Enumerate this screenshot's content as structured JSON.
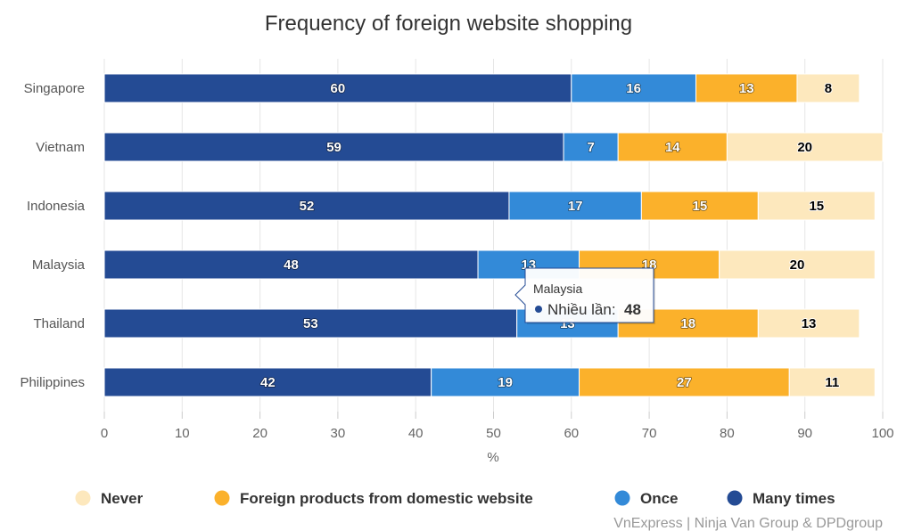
{
  "chart_data": {
    "type": "bar",
    "orientation": "horizontal",
    "stacked": true,
    "title": "Frequency of foreign website shopping",
    "xlabel": "%",
    "categories": [
      "Singapore",
      "Vietnam",
      "Indonesia",
      "Malaysia",
      "Thailand",
      "Philippines"
    ],
    "series": [
      {
        "name": "Many times",
        "color": "#244b94",
        "label_color": "#ffffff",
        "values": [
          60,
          59,
          52,
          48,
          53,
          42
        ]
      },
      {
        "name": "Once",
        "color": "#338ad8",
        "label_color": "#ffffff",
        "values": [
          16,
          7,
          17,
          13,
          13,
          19
        ]
      },
      {
        "name": "Foreign products from domestic website",
        "color": "#fbb12b",
        "label_color": "#ffffff",
        "values": [
          13,
          14,
          15,
          18,
          18,
          27
        ]
      },
      {
        "name": "Never",
        "color": "#fde8bd",
        "label_color": "#000000",
        "values": [
          8,
          20,
          15,
          20,
          13,
          11
        ]
      }
    ],
    "xlim": [
      0,
      100
    ],
    "xticks": [
      0,
      10,
      20,
      30,
      40,
      50,
      60,
      70,
      80,
      90,
      100
    ],
    "grid": true,
    "legend_position": "bottom",
    "legend_order": [
      "Never",
      "Foreign products from domestic website",
      "Once",
      "Many times"
    ],
    "credits": "VnExpress | Ninja Van Group & DPDgroup",
    "tooltip": {
      "category": "Malaysia",
      "series_label": "Nhiều lần:",
      "value": "48",
      "marker_color": "#244b94"
    }
  }
}
